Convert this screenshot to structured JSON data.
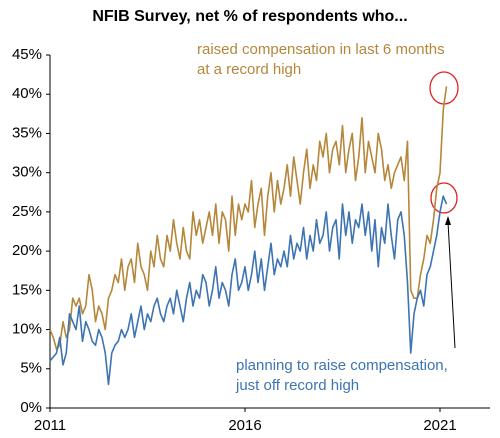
{
  "chart_data": {
    "type": "line",
    "title": "NFIB Survey, net % of respondents who...",
    "categories": [
      "2011",
      null,
      null,
      null,
      null,
      null,
      null,
      null,
      null,
      null,
      null,
      null,
      null,
      null,
      null,
      null,
      null,
      null,
      null,
      null,
      null,
      null,
      null,
      null,
      null,
      null,
      null,
      null,
      null,
      null,
      null,
      null,
      null,
      null,
      null,
      null,
      null,
      null,
      null,
      null,
      null,
      null,
      null,
      null,
      null,
      null,
      null,
      null,
      null,
      null,
      null,
      null,
      null,
      null,
      null,
      null,
      null,
      null,
      null,
      null,
      "2016",
      null,
      null,
      null,
      null,
      null,
      null,
      null,
      null,
      null,
      null,
      null,
      null,
      null,
      null,
      null,
      null,
      null,
      null,
      null,
      null,
      null,
      null,
      null,
      null,
      null,
      null,
      null,
      null,
      null,
      null,
      null,
      null,
      null,
      null,
      null,
      null,
      null,
      null,
      null,
      null,
      null,
      null,
      null,
      null,
      null,
      null,
      null,
      null,
      null,
      null,
      null,
      null,
      null,
      null,
      null,
      null,
      null,
      null,
      null,
      "2021",
      null,
      null
    ],
    "series": [
      {
        "name": "raised compensation in last 6 months",
        "color": "#b5873a",
        "values": [
          10,
          9,
          7.5,
          8,
          11,
          9,
          10,
          14,
          13,
          14,
          12,
          13,
          17,
          15,
          11,
          13,
          12,
          10,
          14,
          15,
          17,
          16,
          19,
          15,
          18,
          19,
          16,
          21,
          18,
          17,
          15,
          20,
          18,
          22,
          19,
          18,
          22,
          20,
          24,
          21,
          19,
          23,
          20,
          19,
          25,
          22,
          24,
          21,
          23,
          25,
          22,
          26,
          21,
          25,
          24,
          20,
          27,
          22,
          26,
          24,
          26,
          25,
          29,
          23,
          26,
          28,
          22,
          27,
          30,
          25,
          29,
          26,
          28,
          31,
          27,
          32,
          29,
          26,
          30,
          33,
          28,
          31,
          29,
          34,
          32,
          35,
          30,
          33,
          34,
          31,
          36,
          30,
          33,
          35,
          29,
          32,
          37,
          30,
          34,
          32,
          30,
          35,
          33,
          29,
          31,
          28,
          30,
          31,
          32,
          29,
          34,
          15,
          14,
          14,
          17,
          19,
          22,
          21,
          24,
          28,
          30,
          38,
          41
        ]
      },
      {
        "name": "planning to raise compensation",
        "color": "#3d74b1",
        "values": [
          6,
          6.5,
          7,
          9,
          5.5,
          7,
          12,
          11,
          10,
          13,
          8.5,
          11,
          10,
          8.5,
          8,
          10,
          9,
          7,
          3,
          7,
          8,
          8.5,
          10,
          9,
          10,
          12,
          9,
          11,
          13,
          10,
          12,
          11,
          13,
          14,
          12,
          11,
          13,
          14,
          12,
          15,
          13,
          11,
          14,
          16,
          13,
          15,
          14,
          17,
          16,
          13,
          15,
          18,
          14,
          16,
          15,
          13,
          17,
          19,
          15,
          16,
          18,
          15,
          17,
          20,
          16,
          19,
          15,
          18,
          21,
          17,
          19,
          18,
          20,
          18,
          22,
          19,
          21,
          20,
          23,
          19,
          22,
          20,
          24,
          21,
          22,
          25,
          20,
          23,
          24,
          19,
          26,
          22,
          25,
          21,
          24,
          23,
          26,
          22,
          25,
          20,
          24,
          18,
          23,
          21,
          26,
          22,
          19,
          24,
          25,
          22,
          16,
          7,
          12,
          14,
          15,
          13,
          17,
          18,
          20,
          22,
          25,
          27,
          26
        ]
      }
    ],
    "ylim": [
      0,
      45
    ],
    "yticks": [
      {
        "value": 0,
        "label": "0%"
      },
      {
        "value": 5,
        "label": "5%"
      },
      {
        "value": 10,
        "label": "10%"
      },
      {
        "value": 15,
        "label": "15%"
      },
      {
        "value": 20,
        "label": "20%"
      },
      {
        "value": 25,
        "label": "25%"
      },
      {
        "value": 30,
        "label": "30%"
      },
      {
        "value": 35,
        "label": "35%"
      },
      {
        "value": 40,
        "label": "40%"
      },
      {
        "value": 45,
        "label": "45%"
      }
    ],
    "annotations": [
      "raised compensation in last 6 months",
      "at a record high",
      "planning to raise compensation,",
      "just off record high"
    ]
  }
}
